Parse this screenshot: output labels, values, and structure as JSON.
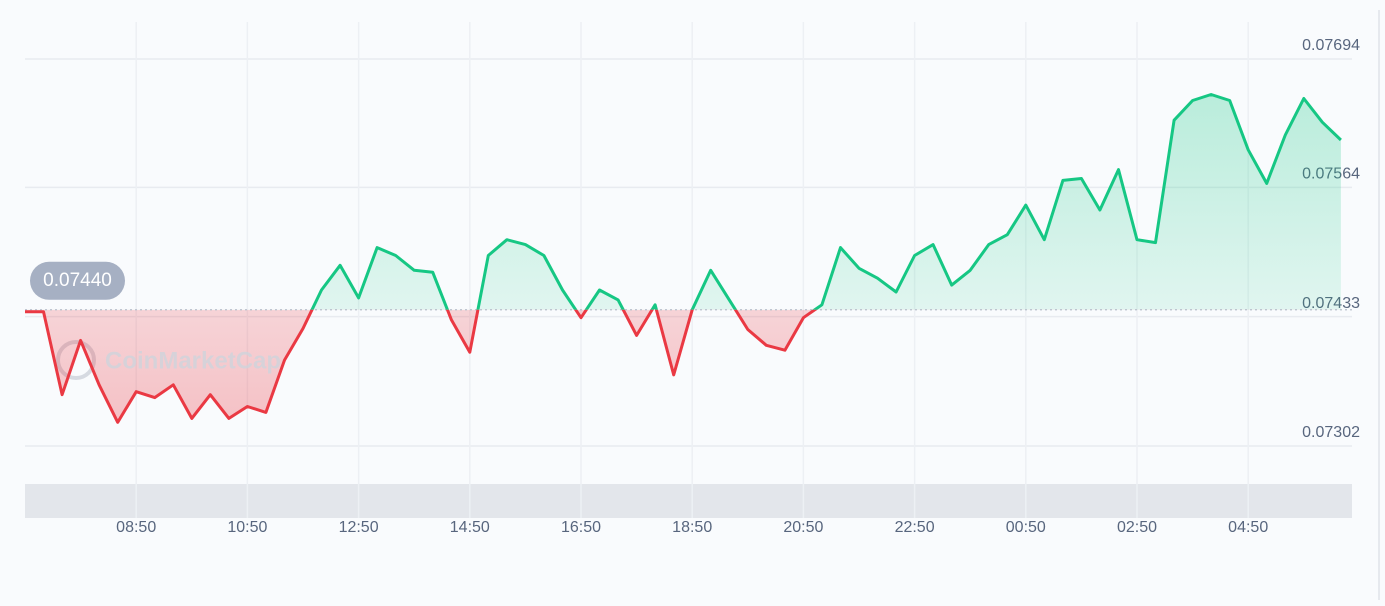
{
  "chart_data": {
    "type": "line",
    "watermark": "CoinMarketCap",
    "baseline": 0.0744,
    "baseline_label": "0.07440",
    "up_color": "#16c784",
    "down_color": "#ea3943",
    "grid": true,
    "ylim": [
      0.07302,
      0.07694
    ],
    "yticks": [
      0.07694,
      0.07564,
      0.07433,
      0.07302
    ],
    "categories": [
      null,
      null,
      null,
      null,
      null,
      null,
      "08:50",
      null,
      null,
      null,
      null,
      null,
      "10:50",
      null,
      null,
      null,
      null,
      null,
      "12:50",
      null,
      null,
      null,
      null,
      null,
      "14:50",
      null,
      null,
      null,
      null,
      null,
      "16:50",
      null,
      null,
      null,
      null,
      null,
      "18:50",
      null,
      null,
      null,
      null,
      null,
      "20:50",
      null,
      null,
      null,
      null,
      null,
      "22:50",
      null,
      null,
      null,
      null,
      null,
      "00:50",
      null,
      null,
      null,
      null,
      null,
      "02:50",
      null,
      null,
      null,
      null,
      null,
      "04:50",
      null,
      null,
      null,
      null,
      null
    ],
    "values": [
      0.07438,
      0.07438,
      0.07354,
      0.07409,
      0.07364,
      0.07326,
      0.07357,
      0.07351,
      0.07364,
      0.0733,
      0.07354,
      0.0733,
      0.07342,
      0.07336,
      0.07389,
      0.07421,
      0.0746,
      0.07485,
      0.07452,
      0.07503,
      0.07495,
      0.0748,
      0.07478,
      0.0743,
      0.07397,
      0.07495,
      0.07511,
      0.07506,
      0.07495,
      0.0746,
      0.07432,
      0.0746,
      0.0745,
      0.07414,
      0.07445,
      0.07374,
      0.0744,
      0.0748,
      0.0745,
      0.0742,
      0.07404,
      0.07399,
      0.07432,
      0.07445,
      0.07503,
      0.07482,
      0.07472,
      0.07458,
      0.07495,
      0.07506,
      0.07465,
      0.0748,
      0.07506,
      0.07516,
      0.07546,
      0.07511,
      0.07571,
      0.07573,
      0.07541,
      0.07582,
      0.07511,
      0.07508,
      0.07632,
      0.07652,
      0.07658,
      0.07652,
      0.07602,
      0.07568,
      0.07617,
      0.07654,
      0.0763,
      0.07612
    ]
  }
}
